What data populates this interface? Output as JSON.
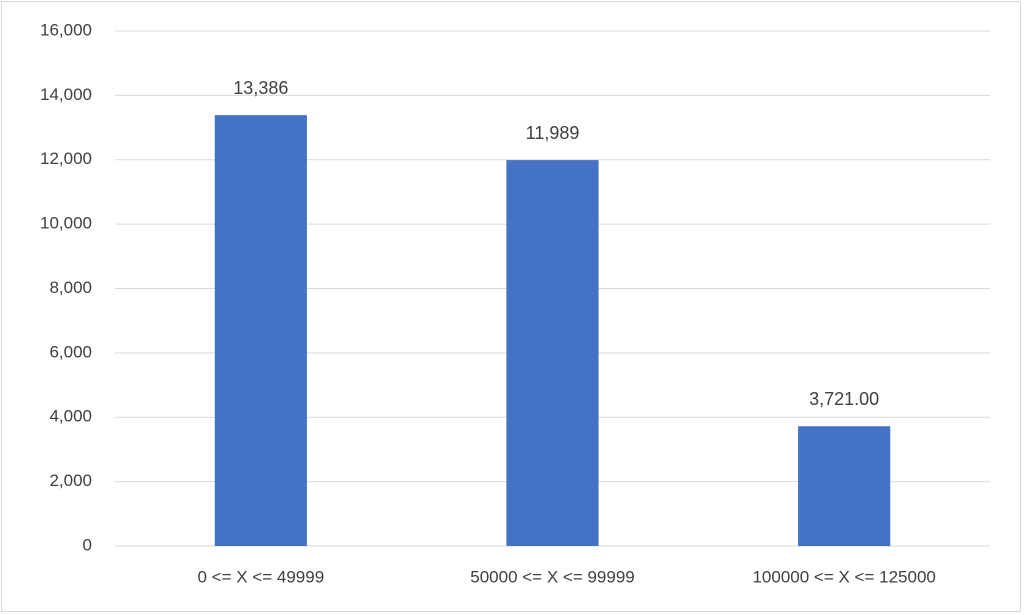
{
  "chart_data": {
    "type": "bar",
    "categories": [
      "0 <= X <= 49999",
      "50000 <= X <= 99999",
      "100000 <= X <= 125000"
    ],
    "values": [
      13386,
      11989,
      3721
    ],
    "value_labels": [
      "13,386",
      "11,989",
      "3,721.00"
    ],
    "color": "#4472c4",
    "ylim": [
      0,
      16000
    ],
    "yticks": [
      0,
      {
        "value": 2000,
        "label": "2,000"
      },
      {
        "value": 4000,
        "label": "4,000"
      },
      {
        "value": 6000,
        "label": "6,000"
      },
      {
        "value": 8000,
        "label": "8,000"
      },
      {
        "value": 10000,
        "label": "10,000"
      },
      {
        "value": 12000,
        "label": "12,000"
      },
      {
        "value": 14000,
        "label": "14,000"
      },
      {
        "value": 16000,
        "label": "16,000"
      }
    ],
    "grid": true
  }
}
